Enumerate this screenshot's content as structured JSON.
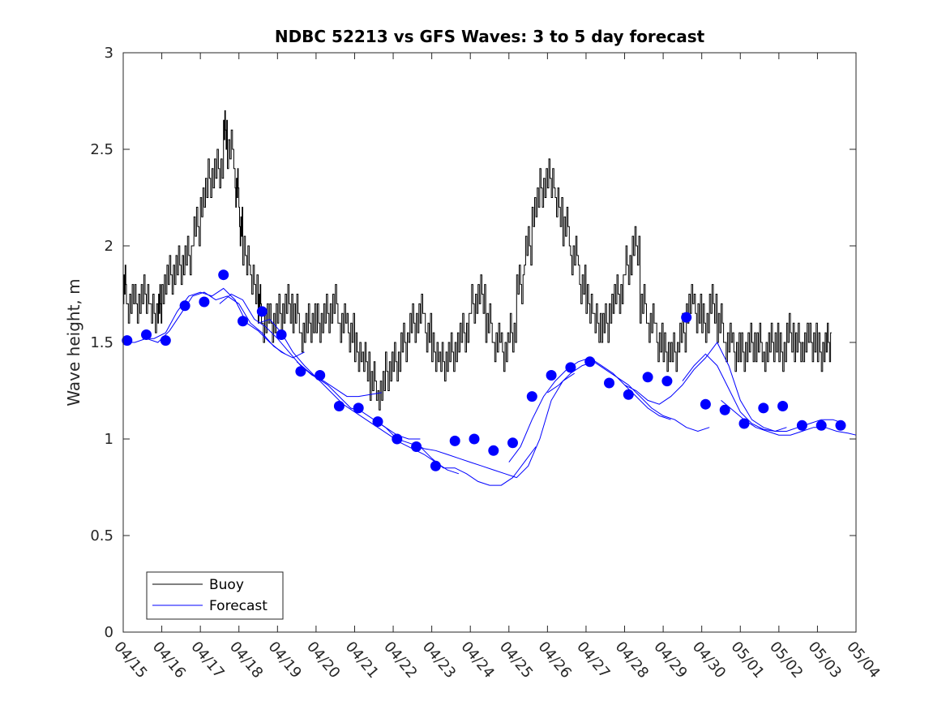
{
  "chart_data": {
    "type": "line",
    "title": "NDBC 52213 vs GFS Waves: 3 to 5 day forecast",
    "xlabel": "",
    "ylabel": "Wave height, m",
    "ylim": [
      0,
      3
    ],
    "yticks": [
      "0",
      "0.5",
      "1",
      "1.5",
      "2",
      "2.5",
      "3"
    ],
    "xlim_days": [
      "04/15",
      "05/04"
    ],
    "xtick_labels": [
      "04/15",
      "04/16",
      "04/17",
      "04/18",
      "04/19",
      "04/20",
      "04/21",
      "04/22",
      "04/23",
      "04/24",
      "04/25",
      "04/26",
      "04/27",
      "04/28",
      "04/29",
      "04/30",
      "05/01",
      "05/02",
      "05/03",
      "05/04"
    ],
    "grid": false,
    "legend": {
      "placement": "bottom-left",
      "entries": [
        {
          "name": "Buoy",
          "color": "#000000"
        },
        {
          "name": "Forecast",
          "color": "#0000ff"
        }
      ]
    },
    "series": [
      {
        "name": "Buoy",
        "color": "#000000",
        "x_day_index": [
          0.0,
          0.1,
          0.3,
          0.5,
          0.7,
          0.9,
          1.0,
          1.2,
          1.4,
          1.6,
          1.8,
          2.0,
          2.2,
          2.4,
          2.6,
          2.7,
          2.9,
          3.0,
          3.1,
          3.3,
          3.5,
          3.6,
          3.8,
          4.0,
          4.2,
          4.4,
          4.6,
          4.8,
          5.0,
          5.2,
          5.4,
          5.6,
          5.8,
          6.0,
          6.2,
          6.4,
          6.6,
          6.8,
          7.0,
          7.2,
          7.4,
          7.6,
          7.8,
          8.0,
          8.2,
          8.4,
          8.6,
          8.8,
          9.0,
          9.2,
          9.4,
          9.6,
          9.8,
          10.0,
          10.2,
          10.4,
          10.6,
          10.8,
          11.0,
          11.2,
          11.4,
          11.6,
          11.8,
          12.0,
          12.2,
          12.4,
          12.6,
          12.8,
          13.0,
          13.2,
          13.4,
          13.6,
          13.8,
          14.0,
          14.2,
          14.4,
          14.6,
          14.8,
          15.0,
          15.2,
          15.4,
          15.6,
          15.8,
          16.0,
          16.2,
          16.4,
          16.6,
          16.8,
          17.0,
          17.2,
          17.4,
          17.6,
          17.8,
          18.0,
          18.2
        ],
        "values": [
          1.8,
          1.7,
          1.7,
          1.75,
          1.65,
          1.7,
          1.8,
          1.85,
          1.9,
          1.95,
          2.1,
          2.25,
          2.35,
          2.4,
          2.6,
          2.5,
          2.3,
          2.1,
          1.95,
          1.8,
          1.7,
          1.6,
          1.6,
          1.65,
          1.7,
          1.65,
          1.55,
          1.6,
          1.6,
          1.65,
          1.7,
          1.6,
          1.55,
          1.45,
          1.4,
          1.3,
          1.25,
          1.35,
          1.4,
          1.5,
          1.6,
          1.65,
          1.55,
          1.45,
          1.4,
          1.45,
          1.5,
          1.55,
          1.7,
          1.75,
          1.6,
          1.5,
          1.45,
          1.55,
          1.8,
          2.0,
          2.2,
          2.3,
          2.35,
          2.2,
          2.1,
          1.95,
          1.8,
          1.7,
          1.6,
          1.6,
          1.7,
          1.75,
          1.9,
          2.0,
          1.7,
          1.6,
          1.5,
          1.45,
          1.45,
          1.55,
          1.7,
          1.65,
          1.6,
          1.7,
          1.6,
          1.5,
          1.45,
          1.45,
          1.5,
          1.5,
          1.45,
          1.5,
          1.45,
          1.55,
          1.5,
          1.5,
          1.5,
          1.45,
          1.5
        ]
      },
      {
        "name": "Forecast",
        "color": "#0000ff",
        "runs": [
          {
            "x": [
              0.0,
              0.3,
              0.6,
              0.9,
              1.2,
              1.5,
              1.8,
              2.1,
              2.4,
              2.7,
              3.0,
              3.3,
              3.6,
              3.9,
              4.2
            ],
            "y": [
              1.5,
              1.5,
              1.52,
              1.5,
              1.56,
              1.65,
              1.74,
              1.76,
              1.72,
              1.74,
              1.7,
              1.6,
              1.55,
              1.48,
              1.44
            ]
          },
          {
            "x": [
              0.5,
              0.8,
              1.1,
              1.4,
              1.7,
              2.0,
              2.3,
              2.6,
              2.9,
              3.2,
              3.5,
              3.8,
              4.1,
              4.4,
              4.7
            ],
            "y": [
              1.52,
              1.52,
              1.55,
              1.66,
              1.74,
              1.76,
              1.74,
              1.78,
              1.72,
              1.6,
              1.56,
              1.5,
              1.45,
              1.42,
              1.45
            ]
          },
          {
            "x": [
              2.5,
              2.8,
              3.1,
              3.4,
              3.7,
              4.0,
              4.3,
              4.6,
              4.9,
              5.2,
              5.5,
              5.8,
              6.1,
              6.4,
              6.7
            ],
            "y": [
              1.7,
              1.75,
              1.72,
              1.62,
              1.58,
              1.52,
              1.45,
              1.38,
              1.33,
              1.3,
              1.26,
              1.22,
              1.22,
              1.23,
              1.24
            ]
          },
          {
            "x": [
              3.5,
              3.8,
              4.1,
              4.4,
              4.7,
              5.0,
              5.3,
              5.6,
              5.9,
              6.2,
              6.5,
              6.8,
              7.1,
              7.4,
              7.7
            ],
            "y": [
              1.6,
              1.62,
              1.55,
              1.45,
              1.38,
              1.32,
              1.28,
              1.22,
              1.16,
              1.14,
              1.1,
              1.06,
              1.02,
              1.0,
              1.0
            ]
          },
          {
            "x": [
              4.5,
              4.8,
              5.1,
              5.4,
              5.7,
              6.0,
              6.3,
              6.6,
              6.9,
              7.2,
              7.5,
              7.8,
              8.1,
              8.4,
              8.7
            ],
            "y": [
              1.4,
              1.35,
              1.3,
              1.24,
              1.18,
              1.14,
              1.1,
              1.06,
              1.02,
              0.98,
              0.95,
              0.92,
              0.88,
              0.84,
              0.82
            ]
          },
          {
            "x": [
              6.5,
              6.8,
              7.1,
              7.4,
              7.7,
              8.0,
              8.3,
              8.6,
              8.9,
              9.2,
              9.5,
              9.8,
              10.1,
              10.4,
              10.7
            ],
            "y": [
              1.1,
              1.06,
              1.0,
              0.98,
              0.96,
              0.9,
              0.85,
              0.85,
              0.82,
              0.78,
              0.76,
              0.76,
              0.8,
              0.88,
              0.96
            ]
          },
          {
            "x": [
              7.5,
              7.8,
              8.1,
              8.4,
              8.7,
              9.0,
              9.3,
              9.6,
              9.9,
              10.2,
              10.5,
              10.8,
              11.1,
              11.4,
              11.7
            ],
            "y": [
              0.98,
              0.95,
              0.94,
              0.92,
              0.9,
              0.88,
              0.86,
              0.84,
              0.82,
              0.8,
              0.86,
              1.0,
              1.2,
              1.3,
              1.34
            ]
          },
          {
            "x": [
              10.0,
              10.3,
              10.6,
              10.9,
              11.2,
              11.5,
              11.8,
              12.1,
              12.4,
              12.7,
              13.0,
              13.3,
              13.6,
              13.9,
              14.2
            ],
            "y": [
              0.88,
              0.96,
              1.1,
              1.22,
              1.3,
              1.36,
              1.4,
              1.42,
              1.38,
              1.34,
              1.28,
              1.22,
              1.16,
              1.12,
              1.1
            ]
          },
          {
            "x": [
              11.0,
              11.3,
              11.6,
              11.9,
              12.2,
              12.5,
              12.8,
              13.1,
              13.4,
              13.7,
              14.0,
              14.3,
              14.6,
              14.9,
              15.2
            ],
            "y": [
              1.24,
              1.28,
              1.34,
              1.38,
              1.4,
              1.36,
              1.32,
              1.28,
              1.22,
              1.16,
              1.12,
              1.1,
              1.06,
              1.04,
              1.06
            ]
          },
          {
            "x": [
              13.0,
              13.3,
              13.6,
              13.9,
              14.2,
              14.5,
              14.8,
              15.1,
              15.4,
              15.7,
              16.0,
              16.3,
              16.6,
              16.9,
              17.2
            ],
            "y": [
              1.28,
              1.25,
              1.2,
              1.18,
              1.22,
              1.28,
              1.36,
              1.42,
              1.5,
              1.38,
              1.2,
              1.1,
              1.06,
              1.04,
              1.06
            ]
          },
          {
            "x": [
              14.5,
              14.8,
              15.1,
              15.4,
              15.7,
              16.0,
              16.3,
              16.6,
              16.9,
              17.2,
              17.5,
              17.8,
              18.1,
              18.4,
              18.7
            ],
            "y": [
              1.3,
              1.38,
              1.44,
              1.38,
              1.26,
              1.14,
              1.08,
              1.05,
              1.04,
              1.04,
              1.06,
              1.08,
              1.1,
              1.1,
              1.08
            ]
          },
          {
            "x": [
              15.5,
              15.8,
              16.1,
              16.4,
              16.7,
              17.0,
              17.3,
              17.6,
              17.9,
              18.2,
              18.5,
              18.8,
              19.0
            ],
            "y": [
              1.2,
              1.15,
              1.1,
              1.06,
              1.04,
              1.02,
              1.02,
              1.04,
              1.06,
              1.06,
              1.04,
              1.03,
              1.02
            ]
          }
        ],
        "points_x": [
          0.1,
          0.6,
          1.1,
          1.6,
          2.1,
          2.6,
          3.1,
          3.6,
          4.1,
          4.6,
          5.1,
          5.6,
          6.1,
          6.6,
          7.1,
          7.6,
          8.1,
          8.6,
          9.1,
          9.6,
          10.1,
          10.6,
          11.1,
          11.6,
          12.1,
          12.6,
          13.1,
          13.6,
          14.1,
          14.6,
          15.1,
          15.6,
          16.1,
          16.6,
          17.1,
          17.6,
          18.1,
          18.6
        ],
        "points_y": [
          1.51,
          1.54,
          1.51,
          1.69,
          1.71,
          1.85,
          1.61,
          1.66,
          1.54,
          1.35,
          1.33,
          1.17,
          1.16,
          1.09,
          1.0,
          0.96,
          0.86,
          0.99,
          1.0,
          0.94,
          0.98,
          1.22,
          1.33,
          1.37,
          1.4,
          1.29,
          1.23,
          1.32,
          1.3,
          1.63,
          1.18,
          1.15,
          1.08,
          1.16,
          1.17,
          1.07,
          1.07,
          1.07
        ]
      }
    ]
  }
}
